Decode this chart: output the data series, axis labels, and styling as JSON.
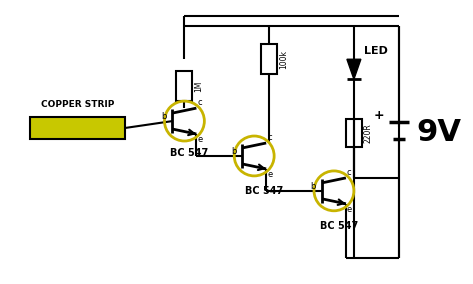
{
  "bg_color": "#ffffff",
  "wire_color": "#000000",
  "component_color": "#000000",
  "transistor_circle_color": "#c8b400",
  "copper_strip_color": "#c8c800",
  "copper_strip_border": "#000000",
  "led_color": "#000000",
  "resistor_color": "#000000",
  "battery_color": "#000000",
  "labels": {
    "copper_strip": "COPPER STRIP",
    "bc547_1": "BC 547",
    "bc547_2": "BC 547",
    "bc547_3": "BC 547",
    "r1": "1M",
    "r2": "100k",
    "r3": "220R",
    "led": "LED",
    "voltage": "9V"
  },
  "figsize": [
    4.73,
    2.84
  ],
  "dpi": 100
}
